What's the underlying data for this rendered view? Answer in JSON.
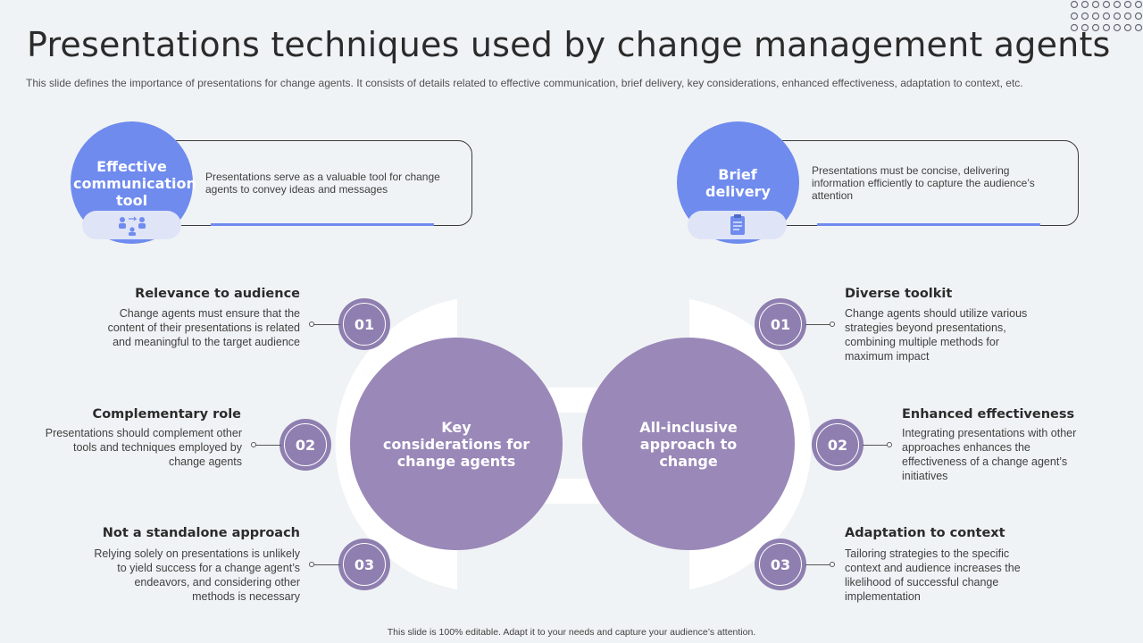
{
  "title": "Presentations techniques used by change management agents",
  "subtitle": "This slide defines the importance of presentations for change agents. It consists of details related to effective communication, brief delivery, key considerations, enhanced effectiveness, adaptation to context, etc.",
  "footer": "This slide is 100% editable. Adapt it to your needs and capture your audience’s attention.",
  "colors": {
    "blue": "#6f8bee",
    "purple": "#9a88b8",
    "bg": "#f0f3f5"
  },
  "top_left": {
    "circle_label": "Effective communication tool",
    "icon": "team-communication-icon",
    "text": "Presentations serve as a valuable tool for change agents to convey ideas and messages"
  },
  "top_right": {
    "circle_label": "Brief delivery",
    "icon": "clipboard-icon",
    "text": "Presentations must be concise, delivering information efficiently to capture the audience’s attention"
  },
  "left_circle": "Key considerations for change agents",
  "right_circle": "All-inclusive approach to change",
  "left_items": [
    {
      "num": "01",
      "heading": "Relevance to audience",
      "text": "Change agents must ensure that the content of their presentations is related and meaningful to the target audience"
    },
    {
      "num": "02",
      "heading": "Complementary role",
      "text": "Presentations should complement other tools and techniques employed by change agents"
    },
    {
      "num": "03",
      "heading": "Not a standalone approach",
      "text": "Relying solely on presentations is unlikely to yield success for a change agent’s endeavors, and considering other methods is necessary"
    }
  ],
  "right_items": [
    {
      "num": "01",
      "heading": "Diverse toolkit",
      "text": "Change agents should utilize various strategies beyond presentations, combining multiple methods for maximum impact"
    },
    {
      "num": "02",
      "heading": "Enhanced effectiveness",
      "text": "Integrating presentations with other approaches enhances the effectiveness of a change agent’s initiatives"
    },
    {
      "num": "03",
      "heading": "Adaptation to context",
      "text": "Tailoring strategies to the specific context and audience increases the likelihood of successful change implementation"
    }
  ]
}
